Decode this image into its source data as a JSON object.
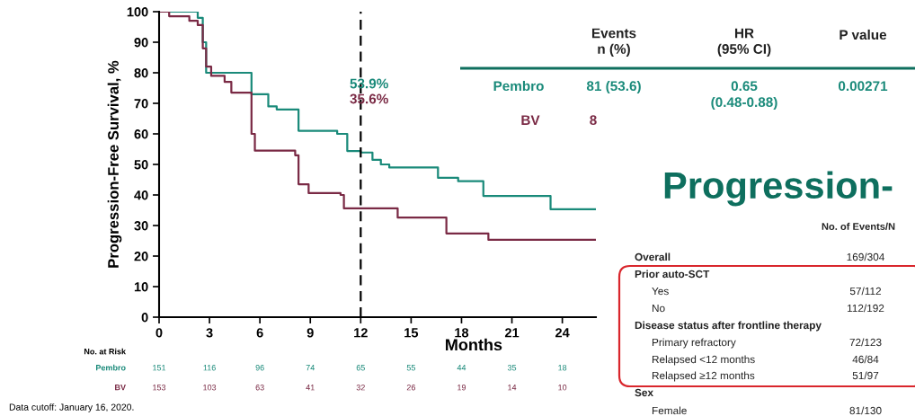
{
  "chart_data": [
    {
      "type": "step",
      "ylabel": "Progression-Free Survival, %",
      "xlabel": "Months",
      "xlim": [
        0,
        26
      ],
      "ylim": [
        0,
        100
      ],
      "xticks": [
        0,
        3,
        6,
        9,
        12,
        15,
        18,
        21,
        24
      ],
      "yticks": [
        0,
        10,
        20,
        30,
        40,
        50,
        60,
        70,
        80,
        90,
        100
      ],
      "grid": false,
      "legend": false,
      "marker": "none",
      "line_style": "solid",
      "series": [
        {
          "color": "#1a8a7a",
          "x": [
            0,
            1.6,
            2.3,
            2.6,
            2.8,
            5.1,
            5.5,
            6.5,
            7.0,
            7.9,
            8.3,
            10.6,
            11.2,
            12.0,
            12.7,
            13.2,
            13.7,
            16.6,
            17.8,
            19.3,
            23.3,
            26
          ],
          "values": [
            100,
            100,
            98,
            90,
            80,
            80,
            73,
            69,
            68,
            68,
            61,
            60,
            54.4,
            53.9,
            51.5,
            50,
            49,
            45.6,
            44.5,
            39.7,
            35.3,
            35.3
          ]
        },
        {
          "color": "#7a2a45",
          "x": [
            0,
            0.6,
            1.8,
            2.3,
            2.6,
            2.8,
            3.1,
            3.9,
            4.3,
            5.2,
            5.5,
            5.7,
            8.1,
            8.3,
            8.9,
            10.8,
            11.0,
            13.8,
            14.2,
            16.4,
            17.1,
            19.6,
            26
          ],
          "values": [
            100,
            98.5,
            97,
            95.6,
            88,
            82,
            79,
            77,
            73.5,
            73.5,
            60,
            54.5,
            53,
            43.5,
            40.6,
            40,
            35.6,
            35.6,
            32.6,
            32.6,
            27.4,
            25.3,
            25.3
          ]
        }
      ],
      "ref_lines": [
        {
          "axis": "x",
          "value": 12,
          "color": "#000000",
          "line_style": "dashed"
        }
      ],
      "annotations": [
        "53.9%",
        "35.6%"
      ]
    },
    {
      "type": "other",
      "annotations": [
        "No. at Risk",
        "Pembro",
        "151",
        "116",
        "96",
        "74",
        "65",
        "55",
        "44",
        "35",
        "18",
        "BV",
        "153",
        "103",
        "63",
        "41",
        "32",
        "26",
        "19",
        "14",
        "10",
        "Data cutoff: January 16, 2020."
      ]
    },
    {
      "type": "other",
      "annotations": [
        "Events\nn (%)",
        "HR\n(95% CI)",
        "P value",
        "Pembro",
        "81 (53.6)",
        "0.65",
        "(0.48-0.88)",
        "0.00271",
        "BV",
        "8",
        "Progression-",
        "No. of Events/N",
        "Overall",
        "169/304",
        "Prior auto-SCT",
        "Yes",
        "57/112",
        "No",
        "112/192",
        "Disease status after frontline therapy",
        "Primary refractory",
        "72/123",
        "Relapsed <12 months",
        "46/84",
        "Relapsed ≥12 months",
        "51/97",
        "Sex",
        "Female",
        "81/130"
      ]
    }
  ]
}
